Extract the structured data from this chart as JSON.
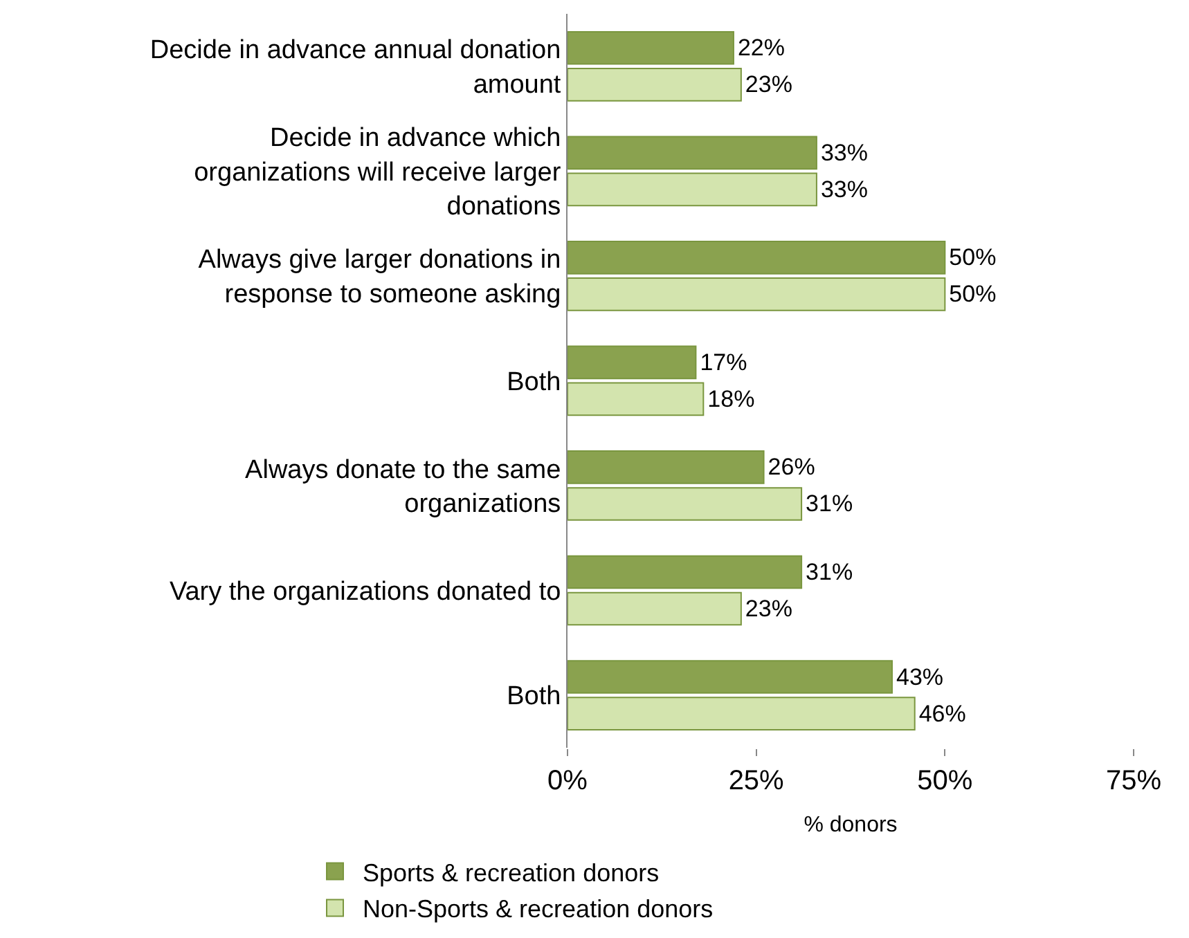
{
  "chart_data": {
    "type": "bar",
    "orientation": "horizontal",
    "xlabel": "% donors",
    "categories": [
      "Decide in advance annual donation amount",
      "Decide in advance which organizations will receive larger donations",
      "Always give larger donations in response to someone asking",
      "Both",
      "Always donate to the same organizations",
      "Vary the organizations donated to",
      "Both"
    ],
    "series": [
      {
        "name": "Sports & recreation donors",
        "color": "#8aa24f",
        "values": [
          22,
          33,
          50,
          17,
          26,
          31,
          43
        ],
        "value_labels": [
          "22%",
          "33%",
          "50%",
          "17%",
          "26%",
          "31%",
          "43%"
        ]
      },
      {
        "name": "Non-Sports & recreation donors",
        "color": "#d3e4ae",
        "values": [
          23,
          33,
          50,
          18,
          31,
          23,
          46
        ],
        "value_labels": [
          "23%",
          "33%",
          "50%",
          "18%",
          "31%",
          "23%",
          "46%"
        ]
      }
    ],
    "xlim": [
      0,
      75
    ],
    "xticks": [
      {
        "value": 0,
        "label": "0%"
      },
      {
        "value": 25,
        "label": "25%"
      },
      {
        "value": 50,
        "label": "50%"
      },
      {
        "value": 75,
        "label": "75%"
      }
    ],
    "legend": "bottom"
  }
}
